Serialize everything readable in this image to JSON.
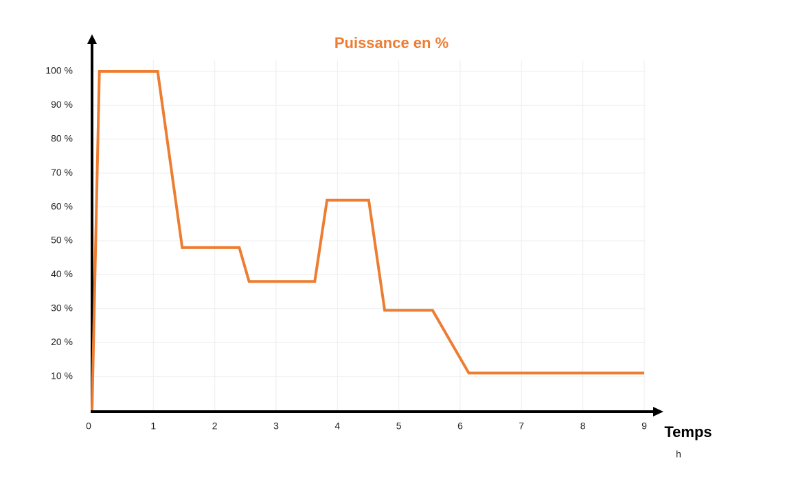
{
  "chart_data": {
    "type": "line",
    "title": "Puissance en %",
    "xlabel": "Temps",
    "x_unit": "h",
    "x": [
      0,
      0.12,
      1.07,
      1.47,
      2.4,
      2.56,
      3.63,
      3.83,
      4.51,
      4.77,
      5.55,
      6.14,
      9
    ],
    "values": [
      0,
      100,
      100,
      48,
      48,
      38,
      38,
      62,
      62,
      29.5,
      29.5,
      11,
      11
    ],
    "color": "#ed7d31",
    "xlim": [
      0,
      9
    ],
    "ylim": [
      0,
      100
    ],
    "xticks": [
      0,
      1,
      2,
      3,
      4,
      5,
      6,
      7,
      8,
      9
    ],
    "yticks": [
      {
        "value": 10,
        "label": "10 %"
      },
      {
        "value": 20,
        "label": "20 %"
      },
      {
        "value": 30,
        "label": "30 %"
      },
      {
        "value": 40,
        "label": "40 %"
      },
      {
        "value": 50,
        "label": "50 %"
      },
      {
        "value": 60,
        "label": "60 %"
      },
      {
        "value": 70,
        "label": "70 %"
      },
      {
        "value": 80,
        "label": "80 %"
      },
      {
        "value": 90,
        "label": "90 %"
      },
      {
        "value": 100,
        "label": "100 %"
      }
    ],
    "grid": true
  }
}
